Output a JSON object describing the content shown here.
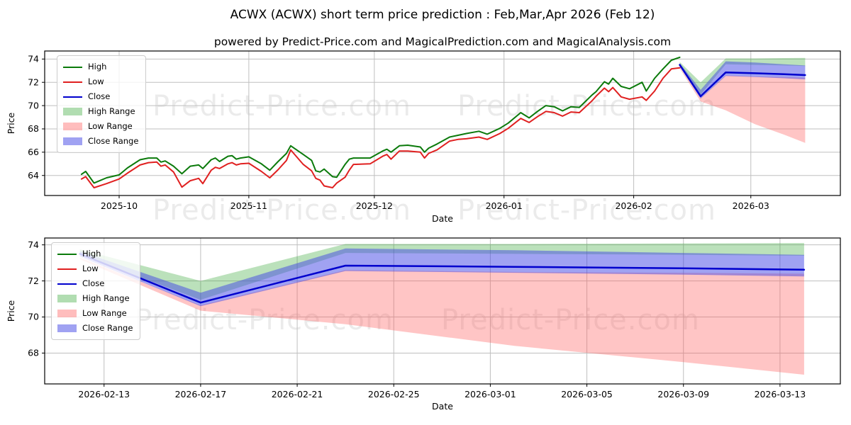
{
  "title": "ACWX (ACWX) short term price prediction : Feb,Mar,Apr 2026 (Feb 12)",
  "subtitle": "powered by Predict-Price.com and MagicalPrediction.com and MagicalAnalysis.com",
  "watermark": "Predict-Price.com",
  "colors": {
    "high_line": "#0b7a0b",
    "low_line": "#e02020",
    "close_line": "#0000cd",
    "high_range": "#3caa3c",
    "low_range": "#ff5a5a",
    "close_range": "#4146e6",
    "grid": "#bfbfbf",
    "frame": "#000000"
  },
  "legend": {
    "items": [
      {
        "label": "High",
        "swatch": "line",
        "color": "#0b7a0b"
      },
      {
        "label": "Low",
        "swatch": "line",
        "color": "#e02020"
      },
      {
        "label": "Close",
        "swatch": "line",
        "color": "#0000cd"
      },
      {
        "label": "High Range",
        "swatch": "patch",
        "color": "#3caa3c"
      },
      {
        "label": "Low Range",
        "swatch": "patch",
        "color": "#ff5a5a"
      },
      {
        "label": "Close Range",
        "swatch": "patch",
        "color": "#4146e6"
      }
    ]
  },
  "chart_data": [
    {
      "name": "overview-chart",
      "type": "line",
      "xlabel": "Date",
      "ylabel": "Price",
      "x_unit": "days since 2025-10-01",
      "grid": true,
      "legend_position": "upper-left",
      "xlim": [
        -17.8,
        172.4
      ],
      "ylim": [
        62.28,
        74.69
      ],
      "x_ticks": [
        {
          "t": 0,
          "label": "2025-10"
        },
        {
          "t": 31,
          "label": "2025-11"
        },
        {
          "t": 61,
          "label": "2025-12"
        },
        {
          "t": 92,
          "label": "2026-01"
        },
        {
          "t": 123,
          "label": "2026-02"
        },
        {
          "t": 151,
          "label": "2026-03"
        }
      ],
      "y_ticks": [
        64,
        66,
        68,
        70,
        72,
        74
      ],
      "historical": {
        "t": [
          -9,
          -8,
          -6,
          -3,
          0,
          2,
          5,
          7,
          9,
          10,
          11,
          13,
          15,
          17,
          19,
          20,
          22,
          23,
          24,
          26,
          27,
          28,
          29,
          31,
          34,
          36,
          38,
          40,
          41,
          44,
          46,
          47,
          48,
          49,
          51,
          52,
          54,
          55,
          56,
          60,
          63,
          64,
          65,
          67,
          69,
          72,
          73,
          74,
          76,
          79,
          81,
          83,
          86,
          88,
          91,
          93,
          96,
          98,
          100,
          102,
          104,
          106,
          108,
          110,
          113,
          114,
          116,
          117,
          118,
          120,
          122,
          125,
          126,
          128,
          130,
          132,
          134
        ],
        "high": [
          64.1,
          64.35,
          63.35,
          63.8,
          64.05,
          64.65,
          65.35,
          65.5,
          65.5,
          65.15,
          65.25,
          64.8,
          64.15,
          64.8,
          64.9,
          64.6,
          65.35,
          65.5,
          65.2,
          65.65,
          65.7,
          65.4,
          65.5,
          65.6,
          65.0,
          64.45,
          65.2,
          65.9,
          66.55,
          65.8,
          65.3,
          64.4,
          64.3,
          64.55,
          63.9,
          63.85,
          64.95,
          65.4,
          65.5,
          65.5,
          66.1,
          66.25,
          66.0,
          66.55,
          66.6,
          66.45,
          66.0,
          66.35,
          66.7,
          67.3,
          67.45,
          67.6,
          67.8,
          67.55,
          68.05,
          68.5,
          69.4,
          68.95,
          69.5,
          70.0,
          69.9,
          69.55,
          69.9,
          69.85,
          70.9,
          71.2,
          72.05,
          71.85,
          72.35,
          71.65,
          71.45,
          72.0,
          71.25,
          72.35,
          73.15,
          73.9,
          74.15
        ],
        "low": [
          63.7,
          63.9,
          62.95,
          63.3,
          63.7,
          64.2,
          64.9,
          65.1,
          65.15,
          64.8,
          64.9,
          64.3,
          63.0,
          63.55,
          63.75,
          63.3,
          64.45,
          64.7,
          64.6,
          65.0,
          65.1,
          64.9,
          65.0,
          65.05,
          64.35,
          63.8,
          64.5,
          65.3,
          66.2,
          64.95,
          64.4,
          63.75,
          63.6,
          63.1,
          62.95,
          63.35,
          63.85,
          64.45,
          64.95,
          65.0,
          65.65,
          65.8,
          65.4,
          66.1,
          66.1,
          66.0,
          65.5,
          65.9,
          66.2,
          66.95,
          67.1,
          67.15,
          67.3,
          67.1,
          67.6,
          68.05,
          68.9,
          68.55,
          69.05,
          69.5,
          69.4,
          69.1,
          69.45,
          69.4,
          70.4,
          70.8,
          71.5,
          71.2,
          71.55,
          70.75,
          70.55,
          70.75,
          70.45,
          71.25,
          72.35,
          73.15,
          73.25
        ]
      },
      "prediction": {
        "dates": [
          "2026-02-12",
          "2026-02-17",
          "2026-02-23",
          "2026-03-02",
          "2026-03-09",
          "2026-03-14"
        ],
        "t": [
          134,
          139,
          145,
          152,
          159,
          164
        ],
        "close": [
          73.5,
          70.8,
          72.85,
          72.78,
          72.7,
          72.62
        ],
        "close_max": [
          73.65,
          71.35,
          73.8,
          73.7,
          73.55,
          73.45
        ],
        "close_min": [
          73.35,
          70.6,
          72.55,
          72.45,
          72.35,
          72.25
        ],
        "high_max": [
          73.75,
          72.0,
          74.05,
          74.05,
          74.08,
          74.1
        ],
        "high_min": [
          73.45,
          70.95,
          73.55,
          73.5,
          73.45,
          73.4
        ],
        "low_max": [
          73.3,
          70.65,
          72.6,
          72.5,
          72.45,
          72.4
        ],
        "low_min": [
          73.2,
          70.35,
          69.6,
          68.4,
          67.5,
          66.8
        ]
      }
    },
    {
      "name": "prediction-detail-chart",
      "type": "line",
      "xlabel": "Date",
      "ylabel": "Price",
      "x_unit": "days since 2025-10-01",
      "grid": true,
      "legend_position": "upper-left",
      "xlim": [
        132.54,
        165.5
      ],
      "ylim": [
        66.29,
        74.38
      ],
      "x_ticks": [
        {
          "t": 135,
          "label": "2026-02-13"
        },
        {
          "t": 139,
          "label": "2026-02-17"
        },
        {
          "t": 143,
          "label": "2026-02-21"
        },
        {
          "t": 147,
          "label": "2026-02-25"
        },
        {
          "t": 151,
          "label": "2026-03-01"
        },
        {
          "t": 155,
          "label": "2026-03-05"
        },
        {
          "t": 159,
          "label": "2026-03-09"
        },
        {
          "t": 163,
          "label": "2026-03-13"
        }
      ],
      "y_ticks": [
        68,
        70,
        72,
        74
      ],
      "prediction": {
        "dates": [
          "2026-02-12",
          "2026-02-17",
          "2026-02-23",
          "2026-03-02",
          "2026-03-09",
          "2026-03-14"
        ],
        "t": [
          134,
          139,
          145,
          152,
          159,
          164
        ],
        "close": [
          73.5,
          70.8,
          72.85,
          72.78,
          72.7,
          72.62
        ],
        "close_max": [
          73.65,
          71.35,
          73.8,
          73.7,
          73.55,
          73.45
        ],
        "close_min": [
          73.35,
          70.6,
          72.55,
          72.45,
          72.35,
          72.25
        ],
        "high_max": [
          73.75,
          72.0,
          74.05,
          74.05,
          74.08,
          74.1
        ],
        "high_min": [
          73.45,
          70.95,
          73.55,
          73.5,
          73.45,
          73.4
        ],
        "low_max": [
          73.3,
          70.65,
          72.6,
          72.5,
          72.45,
          72.4
        ],
        "low_min": [
          73.2,
          70.35,
          69.6,
          68.4,
          67.5,
          66.8
        ]
      }
    }
  ]
}
